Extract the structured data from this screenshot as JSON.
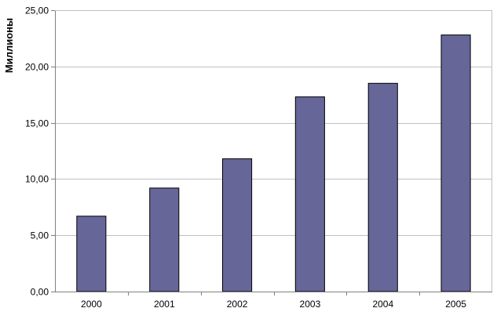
{
  "chart_data": {
    "type": "bar",
    "categories": [
      "2000",
      "2001",
      "2002",
      "2003",
      "2004",
      "2005"
    ],
    "values": [
      6.7,
      9.2,
      11.8,
      17.3,
      18.5,
      22.8
    ],
    "title": "",
    "xlabel": "",
    "ylabel": "Миллионы",
    "ylim": [
      0,
      25
    ],
    "yticks": [
      0,
      5,
      10,
      15,
      20,
      25
    ],
    "ytick_labels": [
      "0,00",
      "5,00",
      "10,00",
      "15,00",
      "20,00",
      "25,00"
    ],
    "grid": true,
    "legend": "none",
    "colors": {
      "bar_fill": "#666699",
      "bar_stroke": "#000000",
      "grid": "#c0c0c0",
      "axis": "#808080"
    }
  }
}
